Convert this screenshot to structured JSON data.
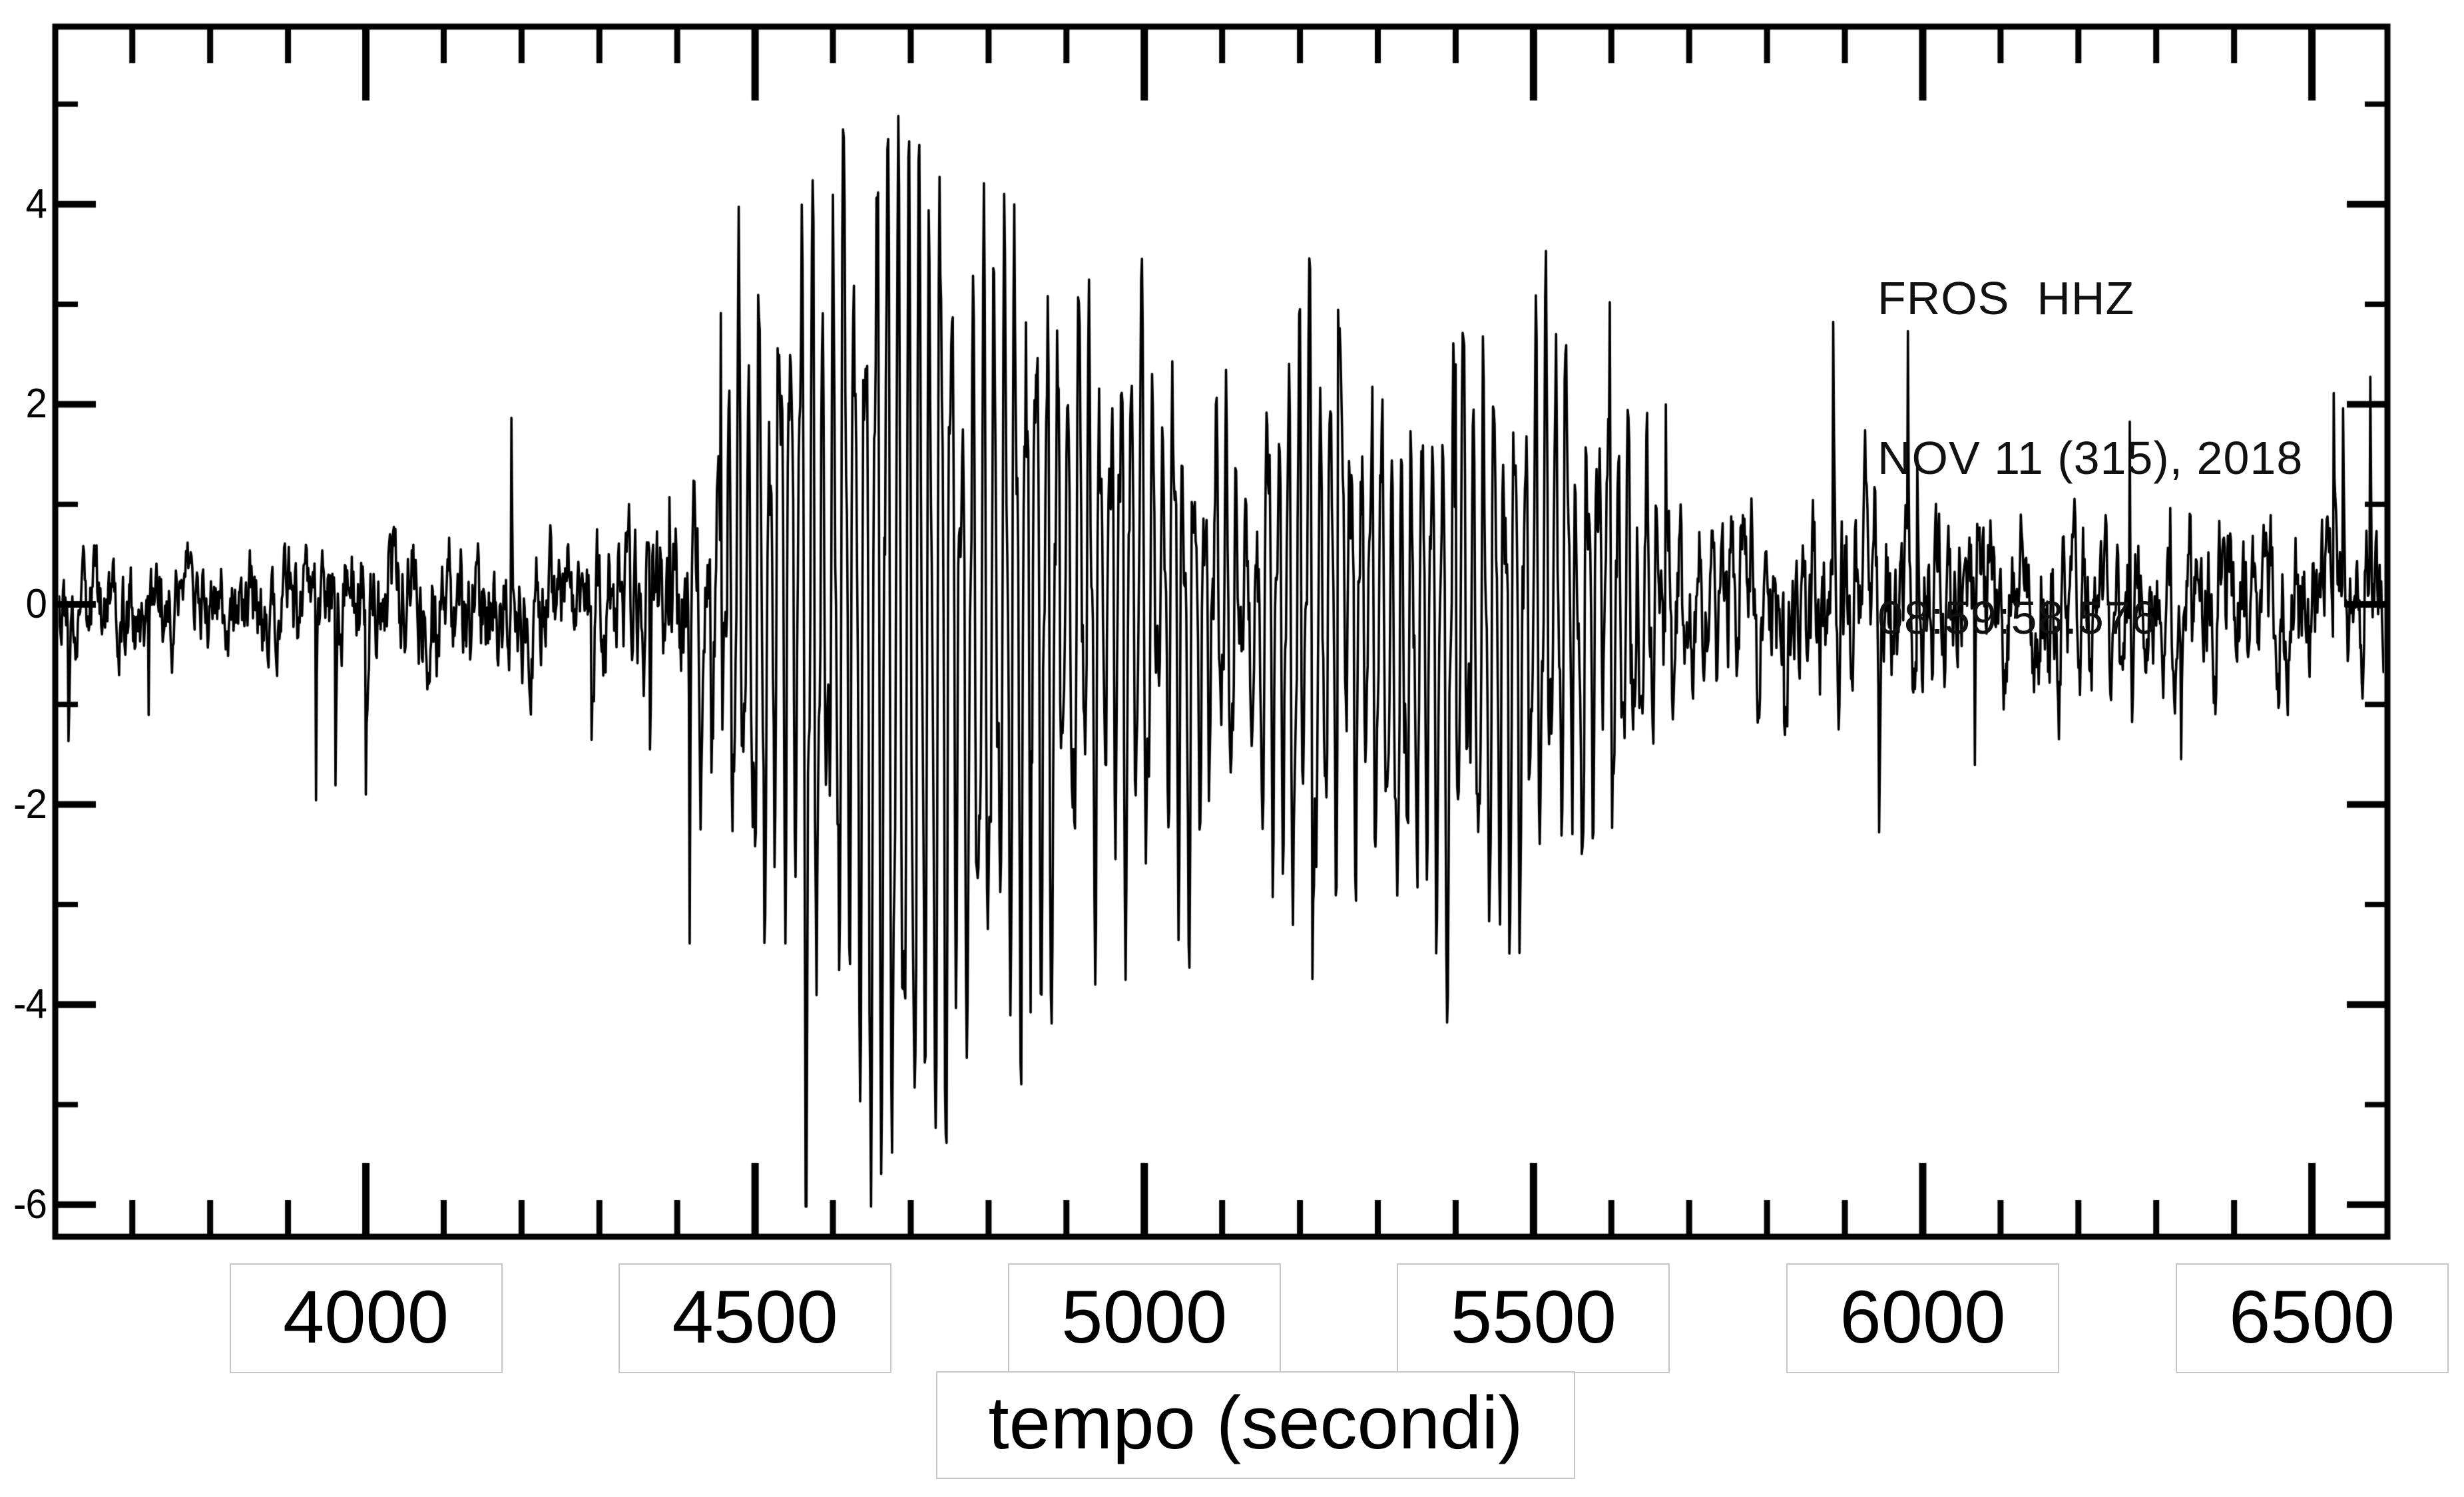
{
  "figure": {
    "background": "#ffffff",
    "ink_color": "#000000",
    "label_box_border_color": "#c7c7c7"
  },
  "annotation": {
    "station_channel": "FROS  HHZ",
    "date_line": "NOV 11 (315), 2018",
    "time_line": "08:59:58.576"
  },
  "chart_data": {
    "type": "line",
    "title": "",
    "xlabel": "tempo (secondi)",
    "ylabel": "",
    "series_name": "FROS HHZ vertical-component seismogram",
    "xlim": [
      3601,
      6597
    ],
    "ylim": [
      -6.32,
      5.77
    ],
    "x_major_ticks": [
      4000,
      4500,
      5000,
      5500,
      6000,
      6500
    ],
    "x_minor_tick_step": 100,
    "y_major_ticks": [
      4,
      2,
      0,
      -2,
      -4,
      -6
    ],
    "y_minor_ticks": [
      5,
      3,
      1,
      -1,
      -3,
      -5
    ],
    "grid": false,
    "legend": null,
    "waveform": {
      "description": "broadband seismogram: background noise, emergent event onset ~4400 s, peak amplitude +5.3/-5.9 near 4650-4700 s, sustained coda ~±2.5 until ~5600 s, noisy tail ~±0.9 with sporadic spikes",
      "seed": 20181111,
      "sample_step_s": 1,
      "dominant_period_s": 13.5,
      "onset_time_s": 4400,
      "peak_time_s": 4660,
      "peak_amplitude": 5.3,
      "trough_amplitude": -5.9,
      "coda_end_time_s": 5620,
      "event_envelope": [
        [
          3601,
          0
        ],
        [
          4380,
          0
        ],
        [
          4415,
          0.7
        ],
        [
          4445,
          1.6
        ],
        [
          4475,
          2.2
        ],
        [
          4505,
          2.7
        ],
        [
          4535,
          3.2
        ],
        [
          4565,
          3.8
        ],
        [
          4595,
          4.3
        ],
        [
          4625,
          4.75
        ],
        [
          4655,
          5.0
        ],
        [
          4685,
          4.75
        ],
        [
          4715,
          4.3
        ],
        [
          4745,
          3.8
        ],
        [
          4785,
          3.4
        ],
        [
          4835,
          3.05
        ],
        [
          4895,
          2.75
        ],
        [
          4955,
          2.5
        ],
        [
          5015,
          2.2
        ],
        [
          5075,
          2.0
        ],
        [
          5135,
          1.95
        ],
        [
          5195,
          2.1
        ],
        [
          5255,
          2.25
        ],
        [
          5315,
          2.15
        ],
        [
          5375,
          2.15
        ],
        [
          5435,
          2.4
        ],
        [
          5495,
          2.35
        ],
        [
          5545,
          2.15
        ],
        [
          5585,
          1.8
        ],
        [
          5625,
          1.25
        ],
        [
          5665,
          0.85
        ],
        [
          5705,
          0.55
        ],
        [
          5765,
          0.4
        ],
        [
          5845,
          0.35
        ],
        [
          5925,
          0.4
        ],
        [
          6005,
          0.3
        ],
        [
          6105,
          0.28
        ],
        [
          6195,
          0.38
        ],
        [
          6295,
          0.28
        ],
        [
          6395,
          0.28
        ],
        [
          6495,
          0.28
        ],
        [
          6597,
          0.28
        ]
      ],
      "noise_envelope": [
        [
          3601,
          0.5
        ],
        [
          3700,
          0.55
        ],
        [
          3800,
          0.5
        ],
        [
          3900,
          0.56
        ],
        [
          3960,
          0.62
        ],
        [
          4030,
          0.72
        ],
        [
          4100,
          0.76
        ],
        [
          4170,
          0.66
        ],
        [
          4240,
          0.6
        ],
        [
          4300,
          0.7
        ],
        [
          4360,
          0.82
        ],
        [
          4420,
          0.92
        ],
        [
          4500,
          1.02
        ],
        [
          4600,
          1.1
        ],
        [
          4700,
          1.1
        ],
        [
          4800,
          1.02
        ],
        [
          4900,
          0.96
        ],
        [
          5000,
          0.9
        ],
        [
          5100,
          0.86
        ],
        [
          5200,
          0.9
        ],
        [
          5300,
          0.9
        ],
        [
          5400,
          0.96
        ],
        [
          5500,
          0.9
        ],
        [
          5600,
          0.86
        ],
        [
          5650,
          0.8
        ],
        [
          5700,
          0.76
        ],
        [
          5800,
          0.72
        ],
        [
          5880,
          0.82
        ],
        [
          5950,
          0.86
        ],
        [
          6020,
          0.72
        ],
        [
          6100,
          0.66
        ],
        [
          6180,
          0.88
        ],
        [
          6250,
          0.76
        ],
        [
          6320,
          0.66
        ],
        [
          6400,
          0.7
        ],
        [
          6480,
          0.72
        ],
        [
          6597,
          0.72
        ]
      ]
    }
  }
}
